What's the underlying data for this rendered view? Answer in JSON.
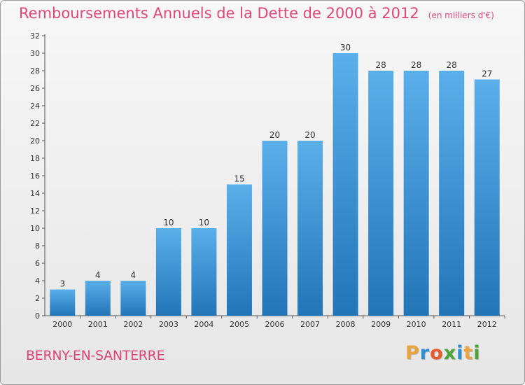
{
  "chart_data": {
    "type": "bar",
    "title": "Remboursements Annuels de la Dette de 2000 à 2012",
    "unit": "(en milliers d'€)",
    "categories": [
      "2000",
      "2001",
      "2002",
      "2003",
      "2004",
      "2005",
      "2006",
      "2007",
      "2008",
      "2009",
      "2010",
      "2011",
      "2012"
    ],
    "values": [
      3,
      4,
      4,
      10,
      10,
      15,
      20,
      20,
      30,
      28,
      28,
      28,
      27
    ],
    "ylim": [
      0,
      32
    ],
    "yticks": [
      0,
      2,
      4,
      6,
      8,
      10,
      12,
      14,
      16,
      18,
      20,
      22,
      24,
      26,
      28,
      30,
      32
    ],
    "xlabel": "",
    "ylabel": "",
    "grid": false
  },
  "commune": "BERNY-EN-SANTERRE",
  "logo": {
    "letters": [
      "P",
      "r",
      "o",
      "x",
      "i",
      "t",
      "i"
    ],
    "colors": [
      "#e8a33d",
      "#2b8fd6",
      "#e85a2a",
      "#4aa53a",
      "#2b8fd6",
      "#e8a33d",
      "#4aa53a"
    ]
  },
  "colors": {
    "bar_top": "#5aaeea",
    "bar_bottom": "#2276b8",
    "title": "#e0457a"
  }
}
